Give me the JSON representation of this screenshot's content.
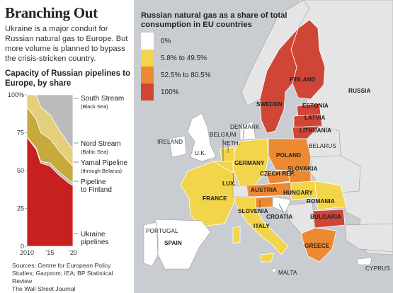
{
  "title": "Branching Out",
  "intro": "Ukraine is a major conduit for Russian natural gas to Europe. But more volume is planned to bypass the crisis-stricken country.",
  "chart_title": "Capacity of Russian pipelines to Europe, by share",
  "sources": "Sources: Centre for European Policy Studies; Gazprom; IEA; BP Statistical Review\nThe Wall Street Journal",
  "chart_data": {
    "type": "area",
    "title": "Capacity of Russian pipelines to Europe, by share",
    "x": [
      2010,
      2012,
      2013,
      2015,
      2017,
      2019,
      2020
    ],
    "x_ticks": [
      "2010",
      "'15",
      "'20"
    ],
    "y_ticks": [
      "100%",
      "75",
      "50",
      "25",
      "0"
    ],
    "ylim": [
      0,
      100
    ],
    "series": [
      {
        "name": "Ukraine pipelines",
        "values": [
          72,
          64,
          55,
          53,
          47,
          42,
          40
        ]
      },
      {
        "name": "Pipeline to Finland",
        "values": [
          0,
          1,
          1,
          2,
          2,
          2,
          2
        ]
      },
      {
        "name": "Yamal Pipeline",
        "subtitle": "(through Belarus)",
        "values": [
          20,
          19,
          19,
          16,
          14,
          12,
          11
        ]
      },
      {
        "name": "Nord Stream",
        "subtitle": "(Baltic Sea)",
        "values": [
          8,
          16,
          17,
          16,
          14,
          12,
          11
        ]
      },
      {
        "name": "South Stream",
        "subtitle": "(Black Sea)",
        "values": [
          0,
          0,
          8,
          13,
          23,
          32,
          36
        ]
      }
    ],
    "colors": [
      "#c8201e",
      "#b9b9b9",
      "#c7a93c",
      "#e4cf7c",
      "#bbbbbb"
    ]
  },
  "map": {
    "legend_title": "Russian natural gas as a share of total consumption in EU countries",
    "legend": [
      {
        "label": "0%",
        "color": "#ffffff"
      },
      {
        "label": "5.8% to 49.5%",
        "color": "#f2d54a"
      },
      {
        "label": "52.5% to 80.5%",
        "color": "#eb8a33"
      },
      {
        "label": "100%",
        "color": "#cf4636"
      }
    ],
    "labels": {
      "finland": "FINLAND",
      "russia": "RUSSIA",
      "sweden": "SWEDEN",
      "estonia": "ESTONIA",
      "latvia": "LATVIA",
      "lithuania": "LITHUANIA",
      "belarus": "BELARUS",
      "denmark": "DENMARK",
      "belgium": "BELGIUM",
      "ireland": "IRELAND",
      "neth": "NETH.",
      "uk": "U.K.",
      "poland": "POLAND",
      "germany": "GERMANY",
      "czech": "CZECH REP.",
      "slovakia": "SLOVAKIA",
      "lux": "LUX.",
      "austria": "AUSTRIA",
      "hungary": "HUNGARY",
      "france": "FRANCE",
      "romania": "ROMANIA",
      "slovenia": "SLOVENIA",
      "croatia": "CROATIA",
      "bulgaria": "BULGARIA",
      "portugal": "PORTUGAL",
      "spain": "SPAIN",
      "italy": "ITALY",
      "greece": "GREECE",
      "malta": "MALTA",
      "cyprus": "CYPRUS"
    }
  }
}
